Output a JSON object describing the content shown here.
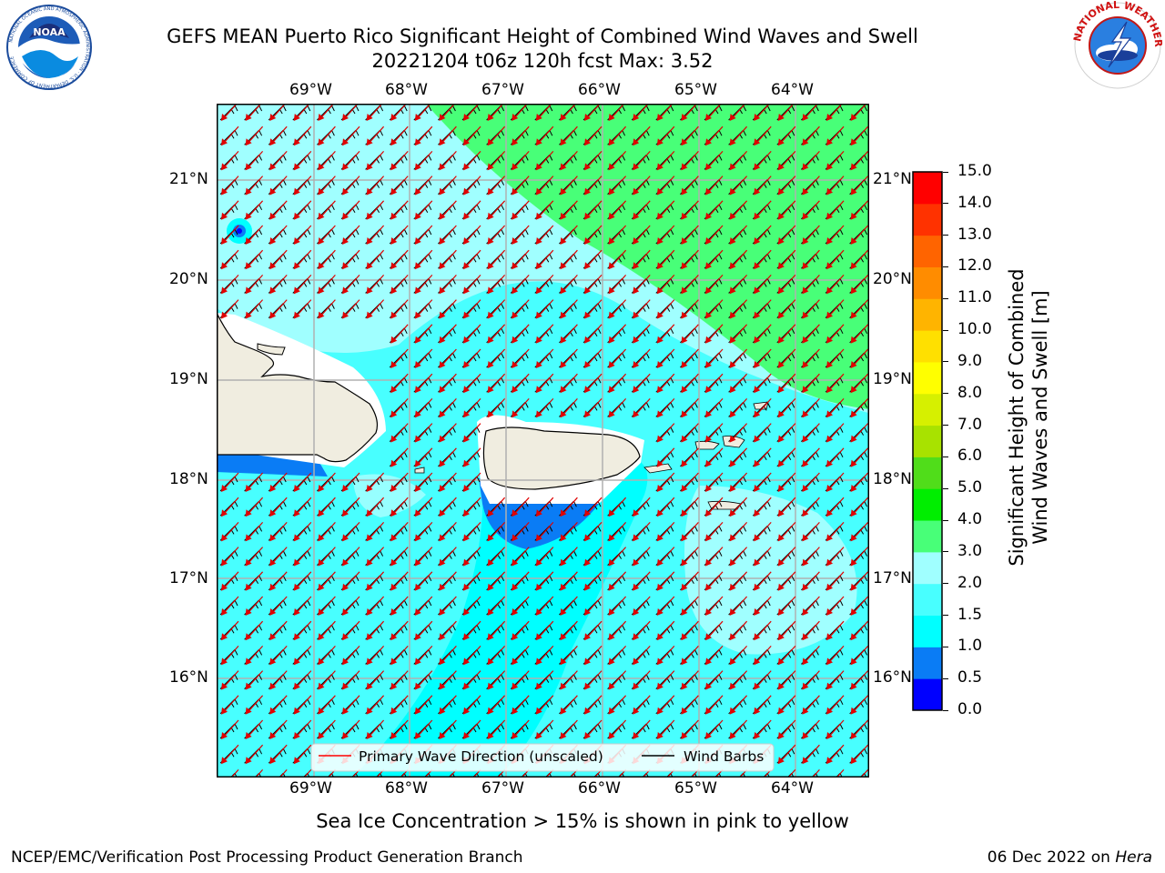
{
  "title": {
    "line1": "GEFS MEAN Puerto Rico Significant Height of Combined Wind Waves and Swell",
    "line2": "20221204 t06z 120h fcst   Max: 3.52"
  },
  "logos": {
    "left": "NOAA",
    "left_ring_text": "NATIONAL OCEANIC AND ATMOSPHERIC ADMINISTRATION · U.S. DEPARTMENT OF COMMERCE",
    "right_ring_text": "NATIONAL WEATHER SERVICE"
  },
  "map": {
    "lon_labels": [
      "69°W",
      "68°W",
      "67°W",
      "66°W",
      "65°W",
      "64°W"
    ],
    "lat_labels": [
      "21°N",
      "20°N",
      "19°N",
      "18°N",
      "17°N",
      "16°N"
    ],
    "legend": {
      "wave_dir": "Primary Wave Direction (unscaled)",
      "wind_barbs": "Wind Barbs",
      "wave_color": "#ff0000",
      "barb_color": "#000000"
    }
  },
  "colorbar": {
    "title_line1": "Significant Height of Combined",
    "title_line2": "Wind Waves and Swell [m]",
    "ticks": [
      "0.0",
      "0.5",
      "1.0",
      "1.5",
      "2.0",
      "3.0",
      "4.0",
      "5.0",
      "6.0",
      "7.0",
      "8.0",
      "9.0",
      "10.0",
      "11.0",
      "12.0",
      "13.0",
      "14.0",
      "15.0"
    ],
    "colors": [
      "#0000ff",
      "#0a7cf5",
      "#00ffff",
      "#48ffff",
      "#a0ffff",
      "#48ff78",
      "#00ee00",
      "#50dd1a",
      "#a8e200",
      "#d6f000",
      "#ffff00",
      "#ffe000",
      "#ffb400",
      "#ff8c00",
      "#ff6400",
      "#ff3200",
      "#ff0000"
    ]
  },
  "sea_ice_note": "Sea Ice Concentration > 15% is shown in pink to yellow",
  "footer": {
    "left": "NCEP/EMC/Verification Post Processing Product Generation Branch",
    "right_date": "06 Dec 2022 on ",
    "right_machine": "Hera"
  }
}
